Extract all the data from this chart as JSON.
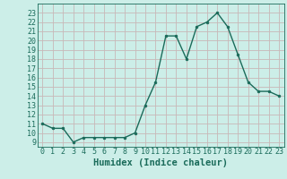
{
  "x": [
    0,
    1,
    2,
    3,
    4,
    5,
    6,
    7,
    8,
    9,
    10,
    11,
    12,
    13,
    14,
    15,
    16,
    17,
    18,
    19,
    20,
    21,
    22,
    23
  ],
  "y": [
    11.0,
    10.5,
    10.5,
    9.0,
    9.5,
    9.5,
    9.5,
    9.5,
    9.5,
    10.0,
    13.0,
    15.5,
    20.5,
    20.5,
    18.0,
    21.5,
    22.0,
    23.0,
    21.5,
    18.5,
    15.5,
    14.5,
    14.5,
    14.0
  ],
  "xlabel": "Humidex (Indice chaleur)",
  "xlim": [
    -0.5,
    23.5
  ],
  "ylim": [
    8.5,
    24.0
  ],
  "yticks": [
    9,
    10,
    11,
    12,
    13,
    14,
    15,
    16,
    17,
    18,
    19,
    20,
    21,
    22,
    23
  ],
  "xticks": [
    0,
    1,
    2,
    3,
    4,
    5,
    6,
    7,
    8,
    9,
    10,
    11,
    12,
    13,
    14,
    15,
    16,
    17,
    18,
    19,
    20,
    21,
    22,
    23
  ],
  "line_color": "#1a6b5a",
  "bg_color": "#cceee8",
  "grid_color": "#c8b8b8",
  "tick_fontsize": 6.0,
  "xlabel_fontsize": 7.5
}
